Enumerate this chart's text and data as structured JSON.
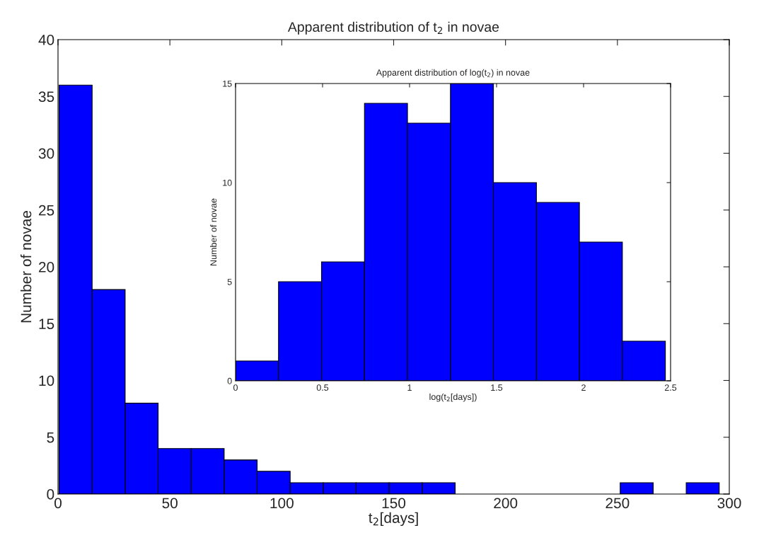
{
  "chart_data": [
    {
      "type": "histogram",
      "title": "Apparent distribution of t$_{2}$ in novae",
      "xlabel": "t$_{2}$[days]",
      "ylabel": "Number of novae",
      "color": "#0000ff",
      "bins": [
        0.5,
        15.25,
        30,
        44.75,
        59.5,
        74.25,
        89,
        103.75,
        118.5,
        133.25,
        148,
        162.75,
        177.5,
        192.25,
        207,
        221.75,
        236.5,
        251.25,
        266,
        280.75,
        295.5
      ],
      "values": [
        36,
        18,
        8,
        4,
        4,
        3,
        2,
        1,
        1,
        1,
        1,
        1,
        0,
        0,
        0,
        0,
        0,
        1,
        0,
        1
      ],
      "xlim": [
        0,
        300
      ],
      "xticks": [
        0,
        50,
        100,
        150,
        200,
        250,
        300
      ],
      "ylim": [
        0,
        40
      ],
      "yticks": [
        0,
        5,
        10,
        15,
        20,
        25,
        30,
        35,
        40
      ],
      "grid": false
    },
    {
      "type": "histogram",
      "title": "Apparent distribution of log(t$_{2}$) in novae",
      "xlabel": "log(t$_{2}$[days])",
      "ylabel": "Number of novae",
      "color": "#0000ff",
      "bins": [
        0,
        0.247,
        0.494,
        0.741,
        0.988,
        1.235,
        1.482,
        1.729,
        1.976,
        2.223,
        2.47
      ],
      "values": [
        1,
        5,
        6,
        14,
        13,
        15,
        10,
        9,
        7,
        2
      ],
      "xlim": [
        0,
        2.5
      ],
      "xticks": [
        0,
        0.5,
        1,
        1.5,
        2,
        2.5
      ],
      "ylim": [
        0,
        15
      ],
      "yticks": [
        0,
        5,
        10,
        15
      ],
      "grid": false
    }
  ]
}
